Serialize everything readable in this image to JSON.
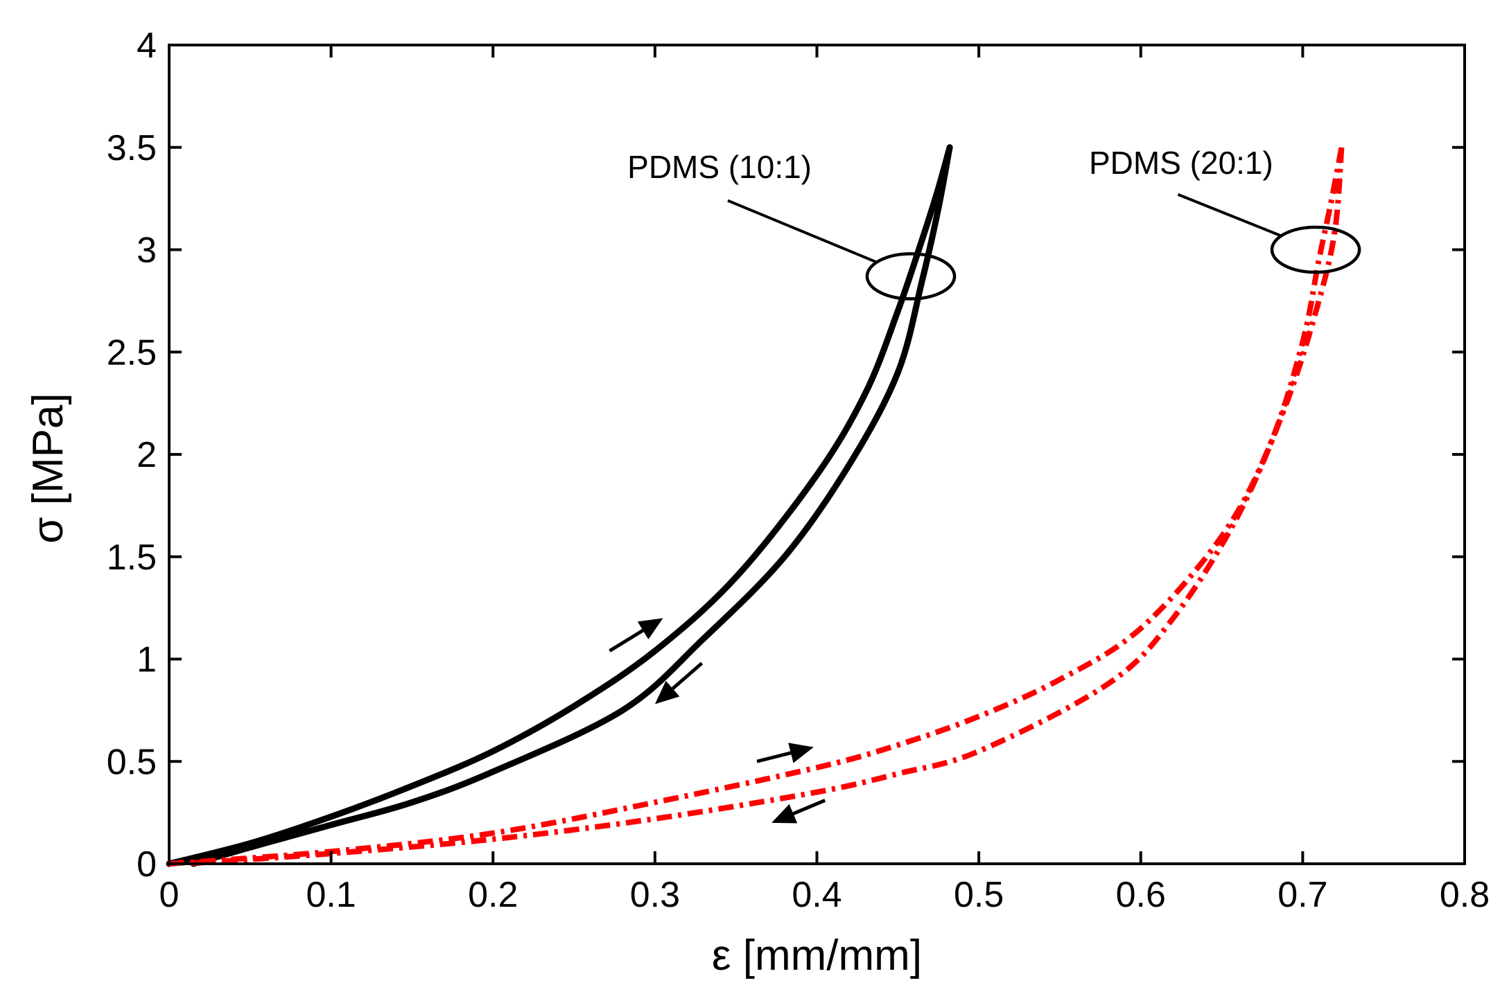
{
  "chart_data": {
    "type": "line",
    "title": "",
    "xlabel": "ε [mm/mm]",
    "ylabel": "σ [MPa]",
    "xlim": [
      0,
      0.8
    ],
    "ylim": [
      0,
      4
    ],
    "xticks": [
      0,
      0.1,
      0.2,
      0.3,
      0.4,
      0.5,
      0.6,
      0.7,
      0.8
    ],
    "yticks": [
      0,
      0.5,
      1,
      1.5,
      2,
      2.5,
      3,
      3.5,
      4
    ],
    "xtick_labels": [
      "0",
      "0.1",
      "0.2",
      "0.3",
      "0.4",
      "0.5",
      "0.6",
      "0.7",
      "0.8"
    ],
    "ytick_labels": [
      "0",
      "0.5",
      "1",
      "1.5",
      "2",
      "2.5",
      "3",
      "3.5",
      "4"
    ],
    "grid": false,
    "series": [
      {
        "name": "PDMS (10:1) loading",
        "color": "#000000",
        "style": "solid",
        "points": [
          [
            0.0,
            0.0
          ],
          [
            0.05,
            0.1
          ],
          [
            0.1,
            0.23
          ],
          [
            0.15,
            0.38
          ],
          [
            0.2,
            0.55
          ],
          [
            0.25,
            0.77
          ],
          [
            0.3,
            1.04
          ],
          [
            0.35,
            1.4
          ],
          [
            0.4,
            1.9
          ],
          [
            0.43,
            2.3
          ],
          [
            0.45,
            2.7
          ],
          [
            0.465,
            3.05
          ],
          [
            0.475,
            3.3
          ],
          [
            0.482,
            3.5
          ]
        ]
      },
      {
        "name": "PDMS (10:1) unloading",
        "color": "#000000",
        "style": "solid",
        "points": [
          [
            0.482,
            3.5
          ],
          [
            0.475,
            3.2
          ],
          [
            0.465,
            2.85
          ],
          [
            0.45,
            2.4
          ],
          [
            0.42,
            1.95
          ],
          [
            0.38,
            1.5
          ],
          [
            0.33,
            1.1
          ],
          [
            0.28,
            0.75
          ],
          [
            0.2,
            0.45
          ],
          [
            0.15,
            0.3
          ],
          [
            0.1,
            0.19
          ],
          [
            0.05,
            0.08
          ],
          [
            0.015,
            0.0
          ]
        ]
      },
      {
        "name": "PDMS (20:1) loading",
        "color": "#ff0000",
        "style": "dash-dot",
        "points": [
          [
            0.0,
            0.0
          ],
          [
            0.1,
            0.06
          ],
          [
            0.2,
            0.15
          ],
          [
            0.3,
            0.3
          ],
          [
            0.4,
            0.47
          ],
          [
            0.45,
            0.58
          ],
          [
            0.5,
            0.72
          ],
          [
            0.55,
            0.9
          ],
          [
            0.6,
            1.15
          ],
          [
            0.65,
            1.6
          ],
          [
            0.68,
            2.05
          ],
          [
            0.7,
            2.55
          ],
          [
            0.71,
            2.95
          ],
          [
            0.718,
            3.25
          ],
          [
            0.724,
            3.5
          ]
        ]
      },
      {
        "name": "PDMS (20:1) unloading",
        "color": "#ff0000",
        "style": "dash-dot",
        "points": [
          [
            0.724,
            3.5
          ],
          [
            0.72,
            3.1
          ],
          [
            0.71,
            2.75
          ],
          [
            0.69,
            2.25
          ],
          [
            0.66,
            1.7
          ],
          [
            0.62,
            1.2
          ],
          [
            0.58,
            0.88
          ],
          [
            0.5,
            0.55
          ],
          [
            0.45,
            0.44
          ],
          [
            0.4,
            0.35
          ],
          [
            0.3,
            0.22
          ],
          [
            0.2,
            0.12
          ],
          [
            0.1,
            0.05
          ],
          [
            0.01,
            0.0
          ]
        ]
      }
    ],
    "annotations": [
      {
        "text": "PDMS (10:1)",
        "text_x": 0.283,
        "text_y": 3.35,
        "leader_from": [
          0.345,
          3.24
        ],
        "ellipse_center": [
          0.458,
          2.87
        ],
        "ellipse_rx": 0.027,
        "ellipse_ry": 0.11
      },
      {
        "text": "PDMS (20:1)",
        "text_x": 0.568,
        "text_y": 3.37,
        "leader_from": [
          0.623,
          3.27
        ],
        "ellipse_center": [
          0.708,
          3.0
        ],
        "ellipse_rx": 0.027,
        "ellipse_ry": 0.11
      }
    ],
    "arrows": [
      {
        "from": [
          0.272,
          1.04
        ],
        "to": [
          0.305,
          1.2
        ],
        "meaning": "loading"
      },
      {
        "from": [
          0.329,
          0.98
        ],
        "to": [
          0.3,
          0.78
        ],
        "meaning": "unloading"
      },
      {
        "from": [
          0.363,
          0.5
        ],
        "to": [
          0.398,
          0.57
        ],
        "meaning": "loading"
      },
      {
        "from": [
          0.405,
          0.31
        ],
        "to": [
          0.372,
          0.2
        ],
        "meaning": "unloading"
      }
    ]
  }
}
